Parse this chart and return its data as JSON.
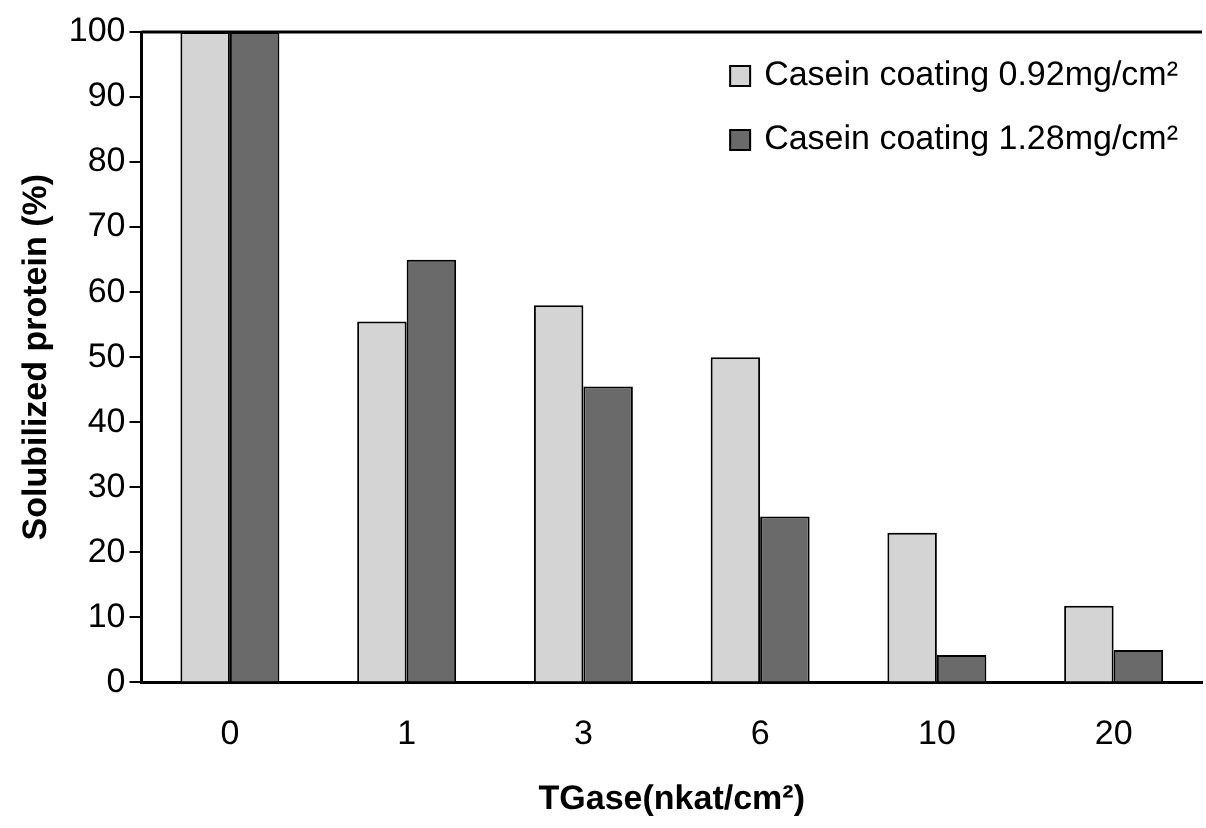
{
  "chart_data": {
    "type": "bar",
    "xlabel": "TGase(nkat/cm²)",
    "ylabel": "Solubilized protein (%)",
    "categories": [
      "0",
      "1",
      "3",
      "6",
      "10",
      "20"
    ],
    "series": [
      {
        "name": "Casein coating 0.92mg/cm²",
        "color": "#d4d4d4",
        "values": [
          100,
          55.5,
          58,
          50,
          23,
          11.8
        ]
      },
      {
        "name": "Casein coating 1.28mg/cm²",
        "color": "#6a6a6a",
        "values": [
          100,
          65,
          45.5,
          25.5,
          4.2,
          5
        ]
      }
    ],
    "ylim": [
      0,
      100
    ],
    "yticks": [
      0,
      10,
      20,
      30,
      40,
      50,
      60,
      70,
      80,
      90,
      100
    ],
    "grid": false,
    "legend": "top right"
  }
}
